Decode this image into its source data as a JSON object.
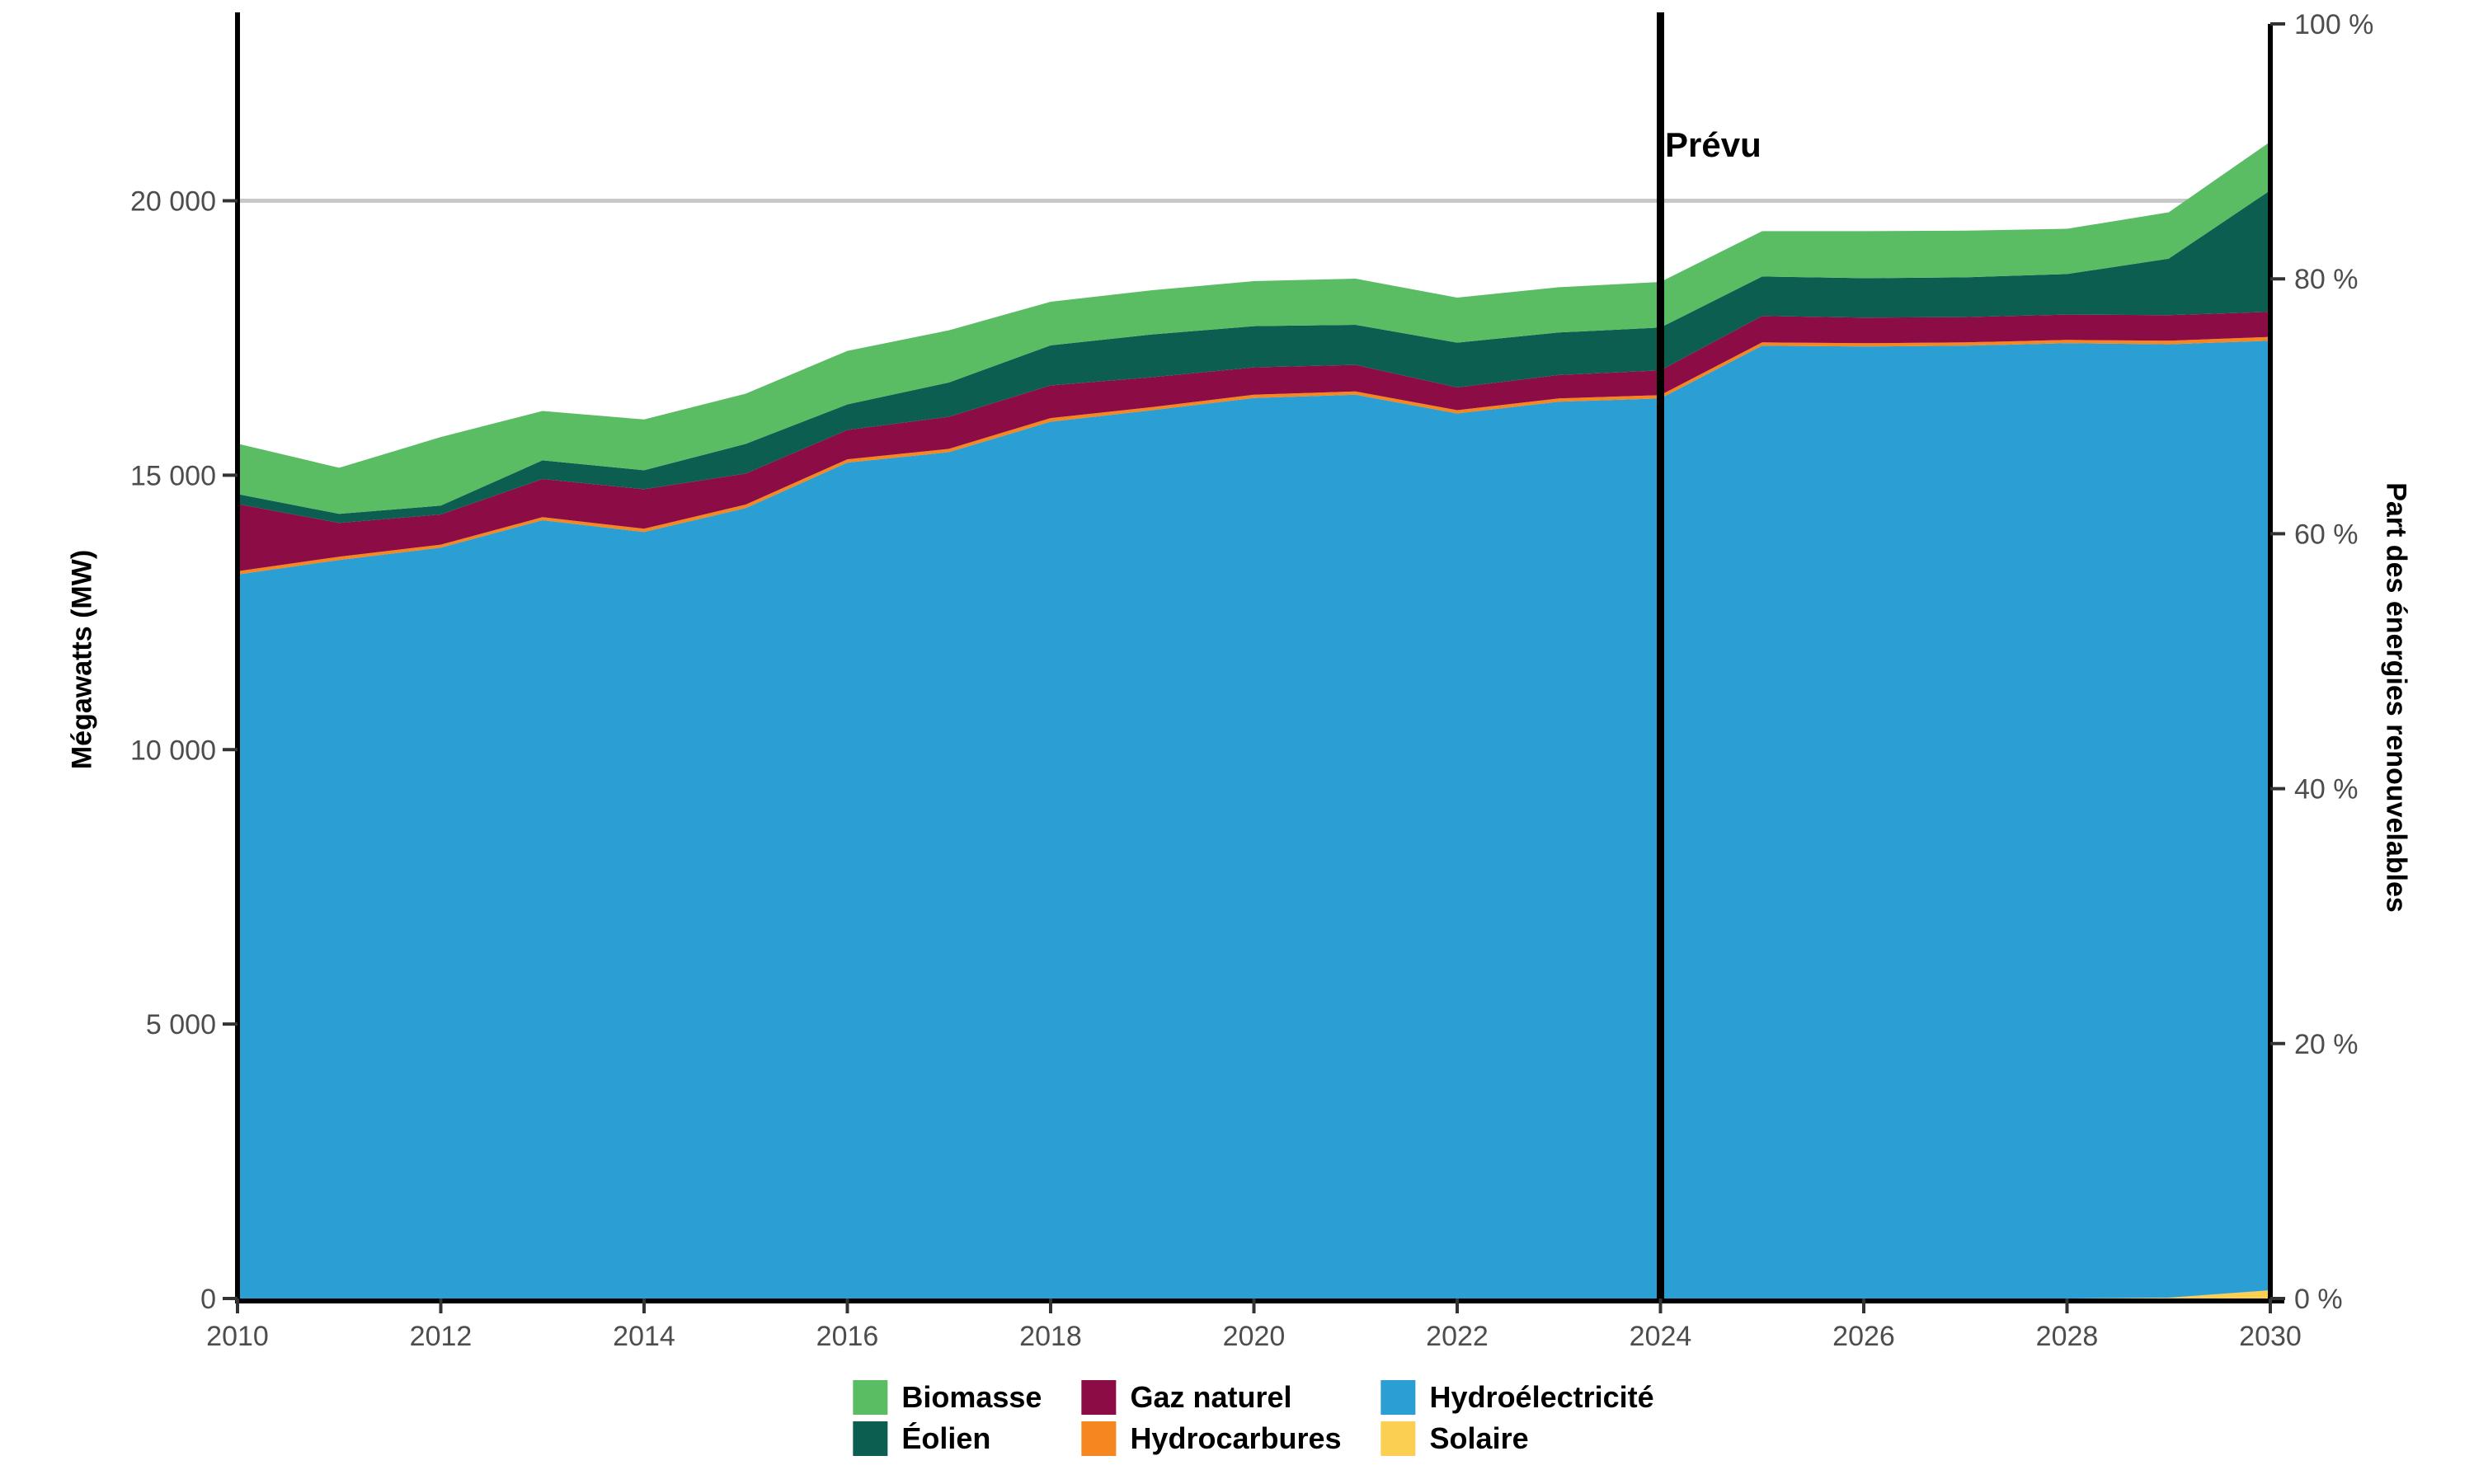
{
  "chart_data": {
    "type": "area",
    "subtype": "stacked-area",
    "title": "",
    "xlabel": "",
    "ylabel_left": "Mégawatts (MW)",
    "ylabel_right": "Part des énergies renouvelables",
    "x": [
      2010,
      2011,
      2012,
      2013,
      2014,
      2015,
      2016,
      2017,
      2018,
      2019,
      2020,
      2021,
      2022,
      2023,
      2024,
      2025,
      2026,
      2027,
      2028,
      2029,
      2030
    ],
    "stack_order": "bottom_to_top",
    "series": [
      {
        "name": "Solaire",
        "color": "#FBCF51",
        "values": [
          0,
          0,
          0,
          0,
          0,
          0,
          0,
          0,
          0,
          0,
          0,
          0,
          0,
          0,
          0,
          0,
          0,
          0,
          0,
          15,
          150
        ]
      },
      {
        "name": "Hydroélectricité",
        "color": "#2B9ED3",
        "values": [
          13190,
          13455,
          13680,
          14180,
          13965,
          14400,
          15230,
          15420,
          15975,
          16185,
          16405,
          16465,
          16125,
          16340,
          16400,
          17360,
          17345,
          17360,
          17405,
          17370,
          17300
        ]
      },
      {
        "name": "Hydrocarbures",
        "color": "#F6861F",
        "values": [
          60,
          60,
          55,
          55,
          60,
          65,
          60,
          60,
          65,
          55,
          60,
          60,
          60,
          60,
          60,
          60,
          60,
          60,
          60,
          65,
          70
        ]
      },
      {
        "name": "Gaz naturel",
        "color": "#8C0D45",
        "values": [
          1225,
          615,
          550,
          695,
          720,
          565,
          535,
          585,
          595,
          545,
          500,
          485,
          415,
          425,
          450,
          480,
          465,
          460,
          460,
          465,
          455
        ]
      },
      {
        "name": "Éolien",
        "color": "#0B5E50",
        "values": [
          180,
          165,
          160,
          340,
          345,
          540,
          465,
          625,
          730,
          780,
          750,
          730,
          815,
          775,
          780,
          720,
          720,
          725,
          740,
          1030,
          2215
        ]
      },
      {
        "name": "Biomasse",
        "color": "#5ABC63",
        "values": [
          920,
          840,
          1250,
          900,
          925,
          915,
          975,
          950,
          795,
          805,
          820,
          840,
          820,
          825,
          830,
          825,
          855,
          850,
          825,
          845,
          885
        ]
      }
    ],
    "y_axis_left": {
      "ticks": [
        {
          "value": 0,
          "label": "0"
        },
        {
          "value": 5000,
          "label": "5 000"
        },
        {
          "value": 10000,
          "label": "10 000"
        },
        {
          "value": 15000,
          "label": "15 000"
        },
        {
          "value": 20000,
          "label": "20 000"
        }
      ],
      "range": [
        0,
        23200
      ]
    },
    "y_axis_right": {
      "ticks": [
        {
          "value": 0,
          "label": "0 %"
        },
        {
          "value": 20,
          "label": "20 %"
        },
        {
          "value": 40,
          "label": "40 %"
        },
        {
          "value": 60,
          "label": "60 %"
        },
        {
          "value": 80,
          "label": "80 %"
        },
        {
          "value": 100,
          "label": "100 %"
        }
      ],
      "range": [
        0,
        100
      ]
    },
    "x_ticks": [
      {
        "value": 2010,
        "label": "2010"
      },
      {
        "value": 2012,
        "label": "2012"
      },
      {
        "value": 2014,
        "label": "2014"
      },
      {
        "value": 2016,
        "label": "2016"
      },
      {
        "value": 2018,
        "label": "2018"
      },
      {
        "value": 2020,
        "label": "2020"
      },
      {
        "value": 2022,
        "label": "2022"
      },
      {
        "value": 2024,
        "label": "2024"
      },
      {
        "value": 2026,
        "label": "2026"
      },
      {
        "value": 2028,
        "label": "2028"
      },
      {
        "value": 2030,
        "label": "2030"
      }
    ],
    "gridlines_mw": [
      20000
    ],
    "grid": "single horizontal gridline at 20 000",
    "legend_position": "bottom-center",
    "colors": {
      "gridline": "#C8C8C8",
      "axis_line": "#000000",
      "tick_mark": "#333333",
      "tick_label": "#4D4D4D",
      "background": "#FFFFFF"
    }
  },
  "annotation": {
    "prevu_label": "Prévu",
    "prevu_year": 2024
  },
  "legend": {
    "items": [
      {
        "label": "Biomasse",
        "color": "#5ABC63"
      },
      {
        "label": "Éolien",
        "color": "#0B5E50"
      },
      {
        "label": "Gaz naturel",
        "color": "#8C0D45"
      },
      {
        "label": "Hydrocarbures",
        "color": "#F6861F"
      },
      {
        "label": "Hydroélectricité",
        "color": "#2B9ED3"
      },
      {
        "label": "Solaire",
        "color": "#FBCF51"
      }
    ]
  }
}
